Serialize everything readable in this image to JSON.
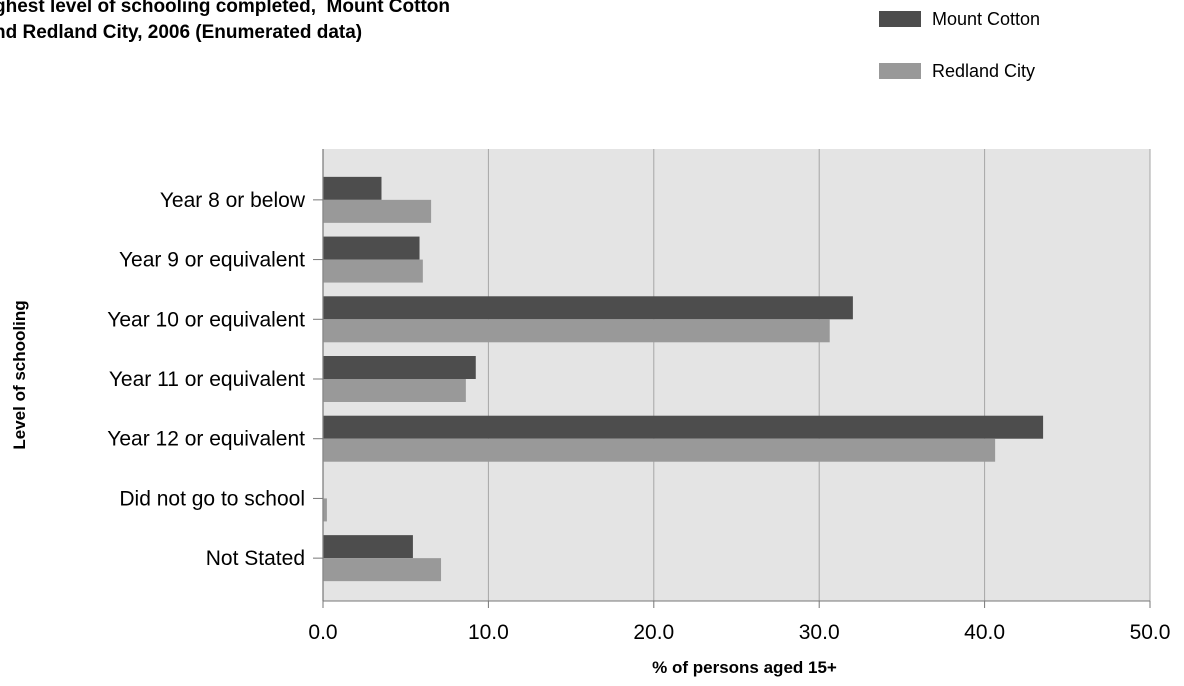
{
  "chart_data": {
    "type": "bar",
    "orientation": "horizontal",
    "title": "ghest level of schooling completed,  Mount Cotton\nnd Redland City, 2006 (Enumerated data)",
    "xlabel": "% of persons aged 15+",
    "ylabel": "Level of schooling",
    "xlim": [
      0,
      50
    ],
    "x_ticks": [
      "0.0",
      "10.0",
      "20.0",
      "30.0",
      "40.0",
      "50.0"
    ],
    "grid": true,
    "legend_position": "top-right",
    "categories": [
      "Year 8 or below",
      "Year 9 or equivalent",
      "Year 10 or equivalent",
      "Year 11 or equivalent",
      "Year 12 or equivalent",
      "Did not go to school",
      "Not Stated"
    ],
    "series": [
      {
        "name": "Mount Cotton",
        "color": "#4d4d4d",
        "values": [
          3.5,
          5.8,
          32.0,
          9.2,
          43.5,
          0.0,
          5.4
        ]
      },
      {
        "name": "Redland City",
        "color": "#999999",
        "values": [
          6.5,
          6.0,
          30.6,
          8.6,
          40.6,
          0.2,
          7.1
        ]
      }
    ],
    "plot_background": "#e4e4e4",
    "grid_color": "#a6a6a6"
  }
}
